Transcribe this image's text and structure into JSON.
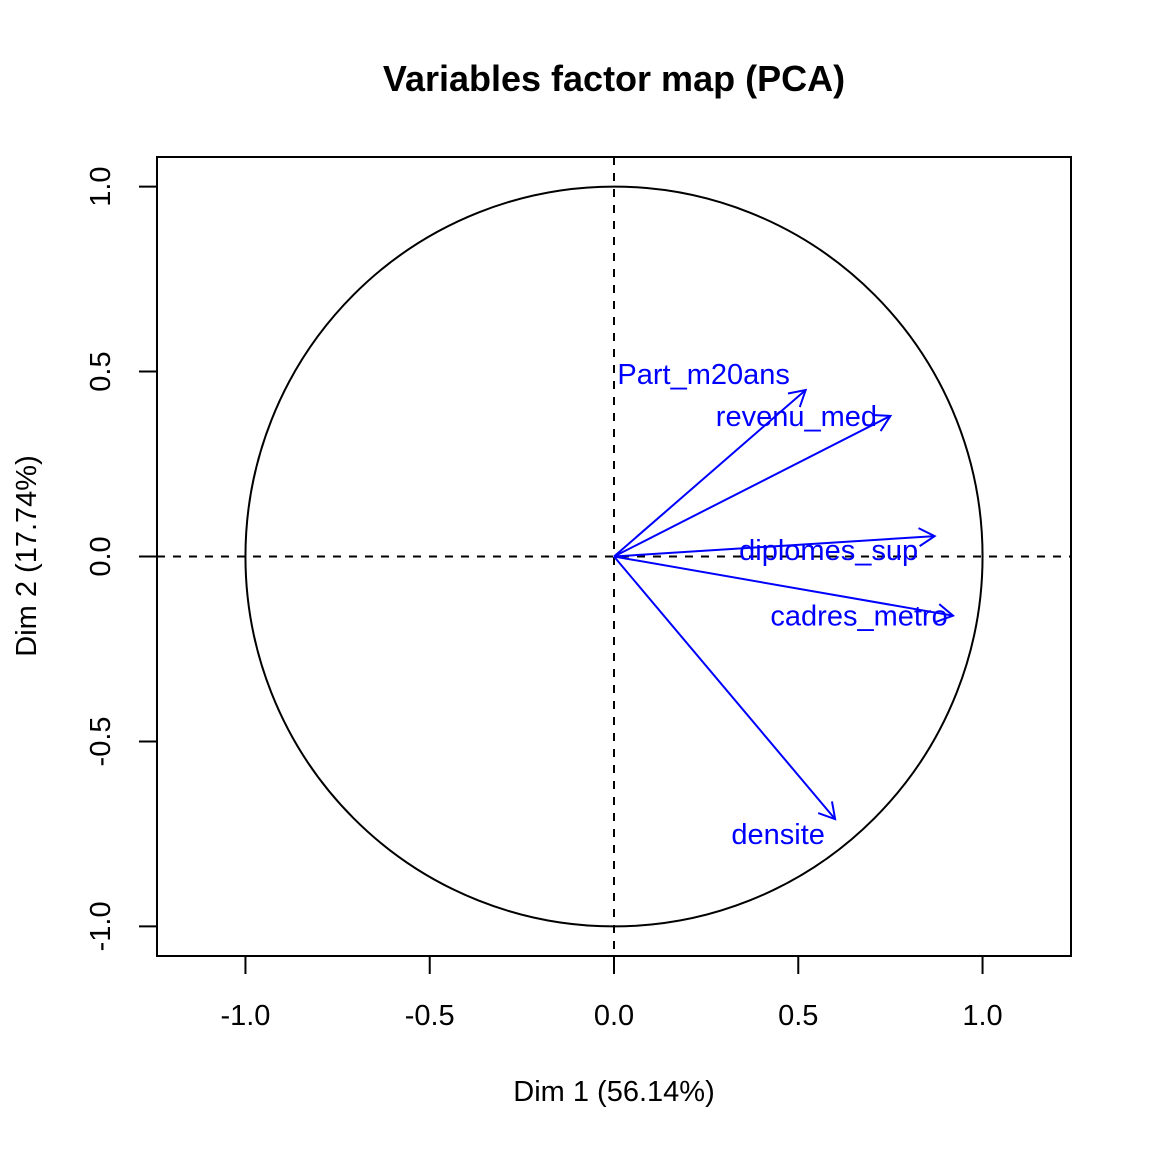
{
  "chart_data": {
    "type": "scatter",
    "subtype": "pca-correlation-circle",
    "title": "Variables factor map (PCA)",
    "xlabel": "Dim 1 (56.14%)",
    "ylabel": "Dim 2 (17.74%)",
    "xlim": [
      -1.24,
      1.24
    ],
    "ylim": [
      -1.08,
      1.08
    ],
    "xticks": [
      -1.0,
      -0.5,
      0.0,
      0.5,
      1.0
    ],
    "yticks": [
      -1.0,
      -0.5,
      0.0,
      0.5,
      1.0
    ],
    "xtick_labels": [
      "-1.0",
      "-0.5",
      "0.0",
      "0.5",
      "1.0"
    ],
    "ytick_labels": [
      "-1.0",
      "-0.5",
      "0.0",
      "0.5",
      "1.0"
    ],
    "circle_radius": 1.0,
    "reference_lines": "dashed at x=0 and y=0",
    "arrow_color": "#0000ff",
    "variables": [
      {
        "name": "Part_m20ans",
        "x": 0.52,
        "y": 0.45,
        "label_position": "above-left"
      },
      {
        "name": "revenu_med",
        "x": 0.75,
        "y": 0.38,
        "label_position": "left"
      },
      {
        "name": "diplomes_sup",
        "x": 0.87,
        "y": 0.055,
        "label_position": "below-left"
      },
      {
        "name": "cadres_metro",
        "x": 0.92,
        "y": -0.16,
        "label_position": "left"
      },
      {
        "name": "densite",
        "x": 0.6,
        "y": -0.71,
        "label_position": "below-left"
      }
    ]
  }
}
